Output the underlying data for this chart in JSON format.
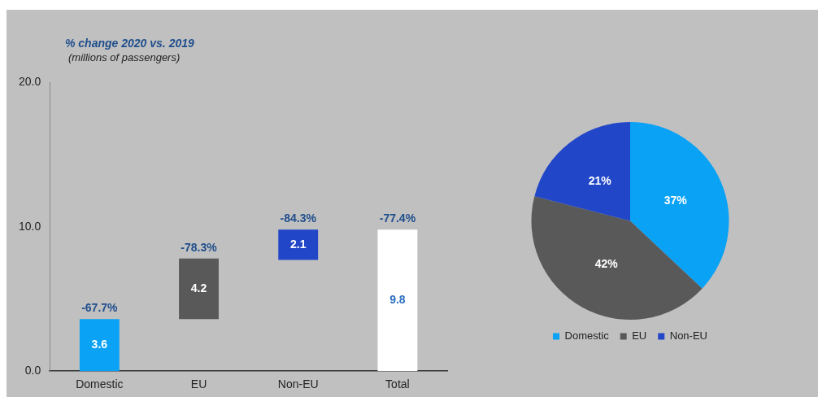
{
  "chart_data": [
    {
      "type": "bar",
      "title": "% change 2020 vs. 2019",
      "subtitle": "(millions of passengers)",
      "categories": [
        "Domestic",
        "EU",
        "Non-EU",
        "Total"
      ],
      "values": [
        3.6,
        4.2,
        2.1,
        9.8
      ],
      "base": [
        0,
        3.6,
        7.7,
        0
      ],
      "colors": [
        "#0aa2f5",
        "#595959",
        "#2246c8",
        "#ffffff"
      ],
      "ylim": [
        0,
        20
      ],
      "yticks": [
        {
          "value": 0,
          "label": "0.0"
        },
        {
          "value": 10,
          "label": "10.0"
        },
        {
          "value": 20,
          "label": "20.0"
        }
      ],
      "data_labels": true,
      "grid": false,
      "legend": false,
      "annotations": [
        {
          "text": "-67.7%",
          "x": "Domestic",
          "y": 3.6
        },
        {
          "text": "-78.3%",
          "x": "EU",
          "y": 7.8
        },
        {
          "text": "-84.3%",
          "x": "Non-EU",
          "y": 9.8
        },
        {
          "text": "-77.4%",
          "x": "Total",
          "y": 9.8
        }
      ]
    },
    {
      "type": "pie",
      "categories": [
        "Domestic",
        "EU",
        "Non-EU"
      ],
      "values": [
        37,
        42,
        21
      ],
      "colors": [
        "#0aa2f5",
        "#595959",
        "#2246c8"
      ],
      "value_labels": [
        "37%",
        "42%",
        "21%"
      ],
      "legend": "bottom"
    }
  ]
}
